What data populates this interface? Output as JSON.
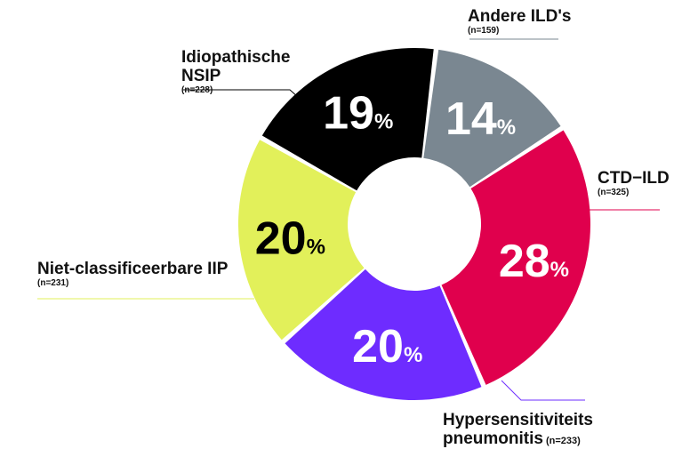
{
  "chart_data": {
    "type": "pie",
    "slices": [
      {
        "label": "CTD-ILD",
        "n": "(n=325)",
        "value": 28,
        "pct_text": "28",
        "color": "#e0004d",
        "text_color": "#ffffff"
      },
      {
        "label": "Hypersensitiviteits pneumonitis",
        "n": "(n=233)",
        "value": 20,
        "pct_text": "20",
        "color": "#6e2cff",
        "text_color": "#ffffff"
      },
      {
        "label": "Niet-classificeerbare IIP",
        "n": "(n=231)",
        "value": 20,
        "pct_text": "20",
        "color": "#e2f05a",
        "text_color": "#000000"
      },
      {
        "label": "Idiopathische NSIP",
        "n": "(n=228)",
        "value": 19,
        "pct_text": "19",
        "color": "#000000",
        "text_color": "#ffffff"
      },
      {
        "label": "Andere ILD's",
        "n": "(n=159)",
        "value": 14,
        "pct_text": "14",
        "color": "#7a8791",
        "text_color": "#ffffff"
      }
    ],
    "percent_symbol": "%"
  },
  "labels": {
    "ctd": {
      "name": "CTD−ILD",
      "n": "(n=325)"
    },
    "hp": {
      "line1": "Hypersensitiviteits",
      "line2": "pneumonitis",
      "n": "(n=233)"
    },
    "niet": {
      "name": "Niet-classificeerbare IIP",
      "n": "(n=231)"
    },
    "nsip": {
      "line1": "Idiopathische",
      "line2": "NSIP",
      "n": "(n=228)"
    },
    "andere": {
      "name": "Andere ILD's",
      "n": "(n=159)"
    }
  }
}
